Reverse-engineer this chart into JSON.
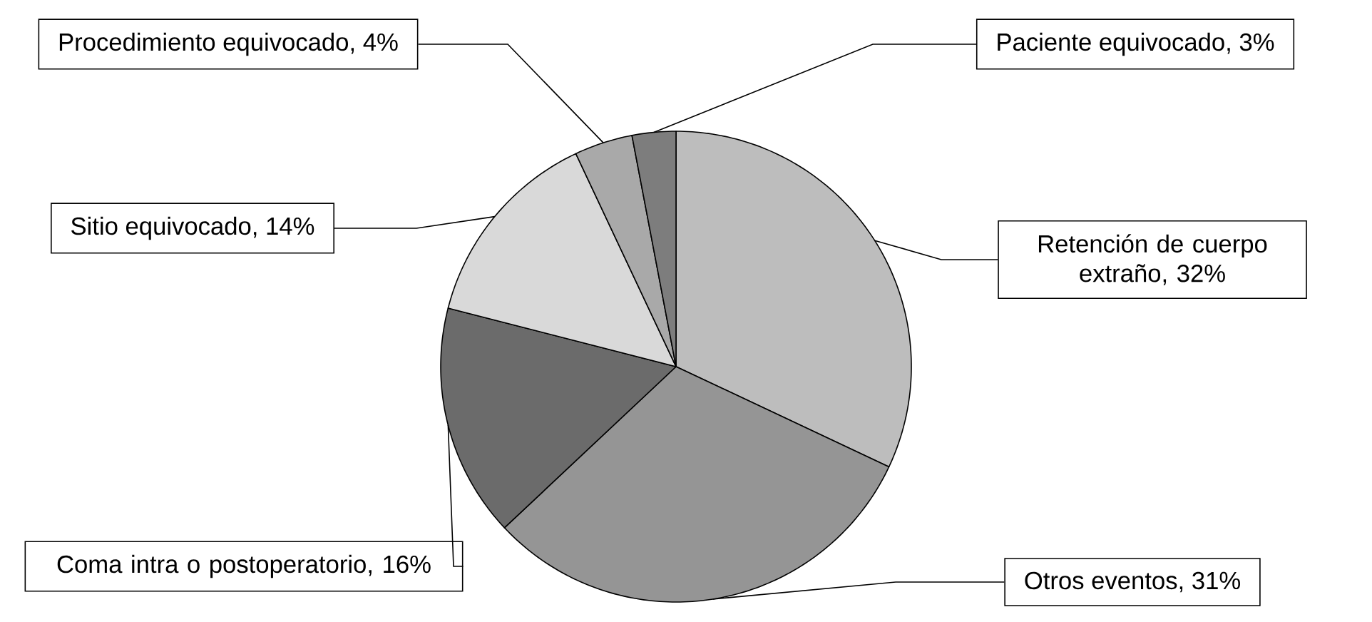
{
  "chart_data": {
    "type": "pie",
    "categories": [
      "Retención de cuerpo extraño, 32%",
      "Otros eventos, 31%",
      "Coma intra o postoperatorio, 16%",
      "Sitio equivocado, 14%",
      "Procedimiento equivocado, 4%",
      "Paciente equivocado, 3%"
    ],
    "values": [
      32,
      31,
      16,
      14,
      4,
      3
    ],
    "colors": [
      "#bdbdbd",
      "#959595",
      "#6b6b6b",
      "#d9d9d9",
      "#a9a9a9",
      "#7d7d7d"
    ]
  }
}
